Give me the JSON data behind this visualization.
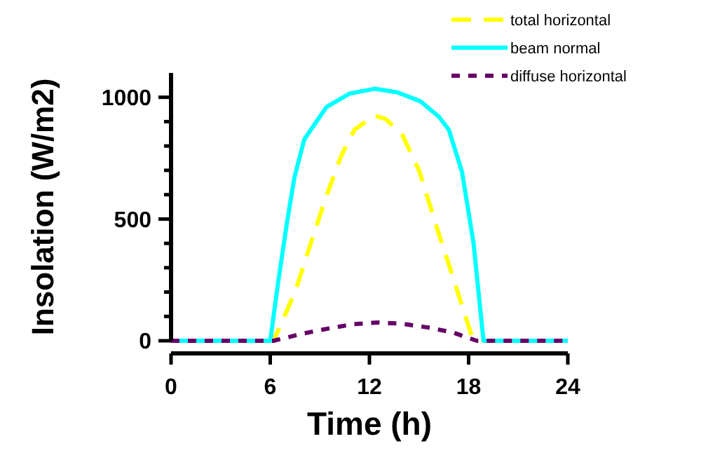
{
  "chart_data": {
    "type": "line",
    "xlabel": "Time (h)",
    "ylabel": "Insolation (W/m2)",
    "xlim": [
      0,
      24
    ],
    "ylim": [
      0,
      1100
    ],
    "xticks": [
      0,
      6,
      12,
      18,
      24
    ],
    "yticks": [
      0,
      {
        "value": 100,
        "label": null
      },
      {
        "value": 200,
        "label": null
      },
      {
        "value": 300,
        "label": null
      },
      {
        "value": 400,
        "label": null
      },
      500,
      {
        "value": 600,
        "label": null
      },
      {
        "value": 700,
        "label": null
      },
      {
        "value": 800,
        "label": null
      },
      {
        "value": 900,
        "label": null
      },
      1000
    ],
    "grid": false,
    "legend": "top right",
    "marker": "none",
    "series": [
      {
        "name": "total horizontal",
        "color": "#ffff00",
        "line_style": "dashed",
        "x": [
          0,
          6.2,
          7.5,
          8.5,
          9.4,
          10.3,
          11.1,
          12.3,
          13,
          14,
          15,
          16.2,
          17.2,
          18.2,
          18.5,
          24
        ],
        "values": [
          0,
          0,
          200,
          410,
          595,
          760,
          867,
          925,
          910,
          844,
          700,
          439,
          230,
          17,
          0,
          0
        ]
      },
      {
        "name": "beam normal",
        "color": "#00ffff",
        "line_style": "solid",
        "x": [
          0,
          6,
          6.5,
          7,
          7.46,
          8.06,
          9.4,
          10.8,
          12.3,
          13.7,
          15.1,
          16.2,
          16.8,
          17.6,
          18.3,
          18.9,
          24
        ],
        "values": [
          0,
          0,
          250,
          480,
          670,
          827,
          960,
          1015,
          1035,
          1020,
          983,
          920,
          867,
          694,
          400,
          0,
          0
        ]
      },
      {
        "name": "diffuse horizontal",
        "color": "#660066",
        "line_style": "dotted",
        "x": [
          0,
          6.2,
          8,
          9.5,
          11,
          12.5,
          14,
          15.5,
          17,
          18.5,
          24
        ],
        "values": [
          0,
          0,
          30,
          50,
          68,
          75,
          70,
          55,
          35,
          0,
          0
        ]
      }
    ]
  }
}
